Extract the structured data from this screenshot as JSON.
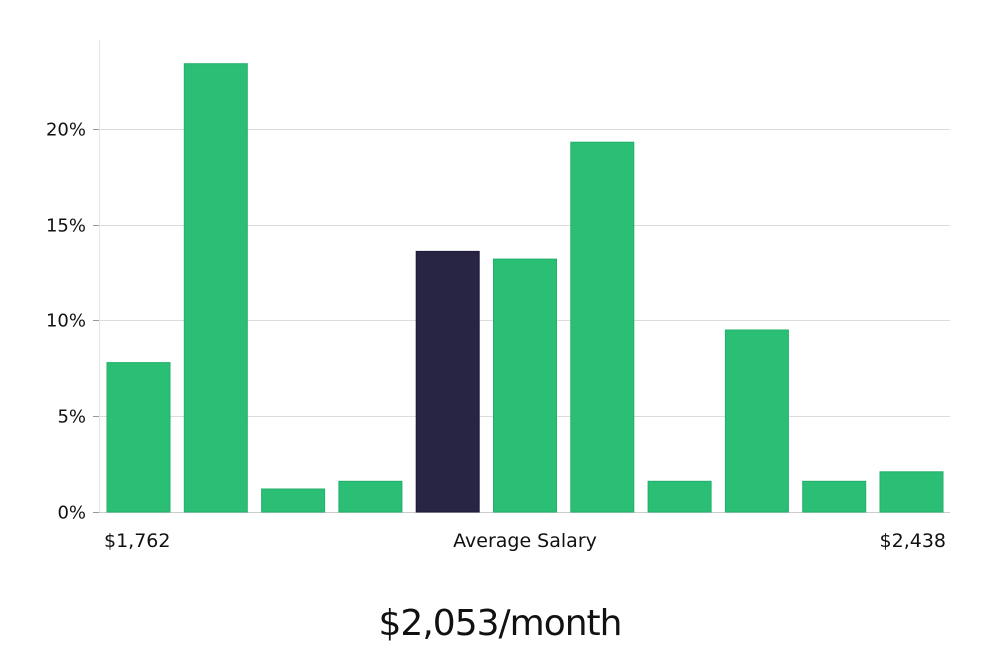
{
  "chart_data": {
    "type": "bar",
    "xlabel": "Average Salary",
    "x_range_labels": [
      "$1,762",
      "$2,438"
    ],
    "y_ticks": [
      "0%",
      "5%",
      "10%",
      "15%",
      "20%"
    ],
    "ylim": [
      0,
      25
    ],
    "grid": true,
    "highlight_index": 4,
    "values": [
      7.8,
      23.4,
      1.2,
      1.6,
      13.6,
      13.2,
      19.3,
      1.6,
      9.5,
      1.6,
      2.1
    ],
    "bar_color": "#2bbf75",
    "highlight_color": "#272444"
  },
  "summary": "$2,053/month"
}
